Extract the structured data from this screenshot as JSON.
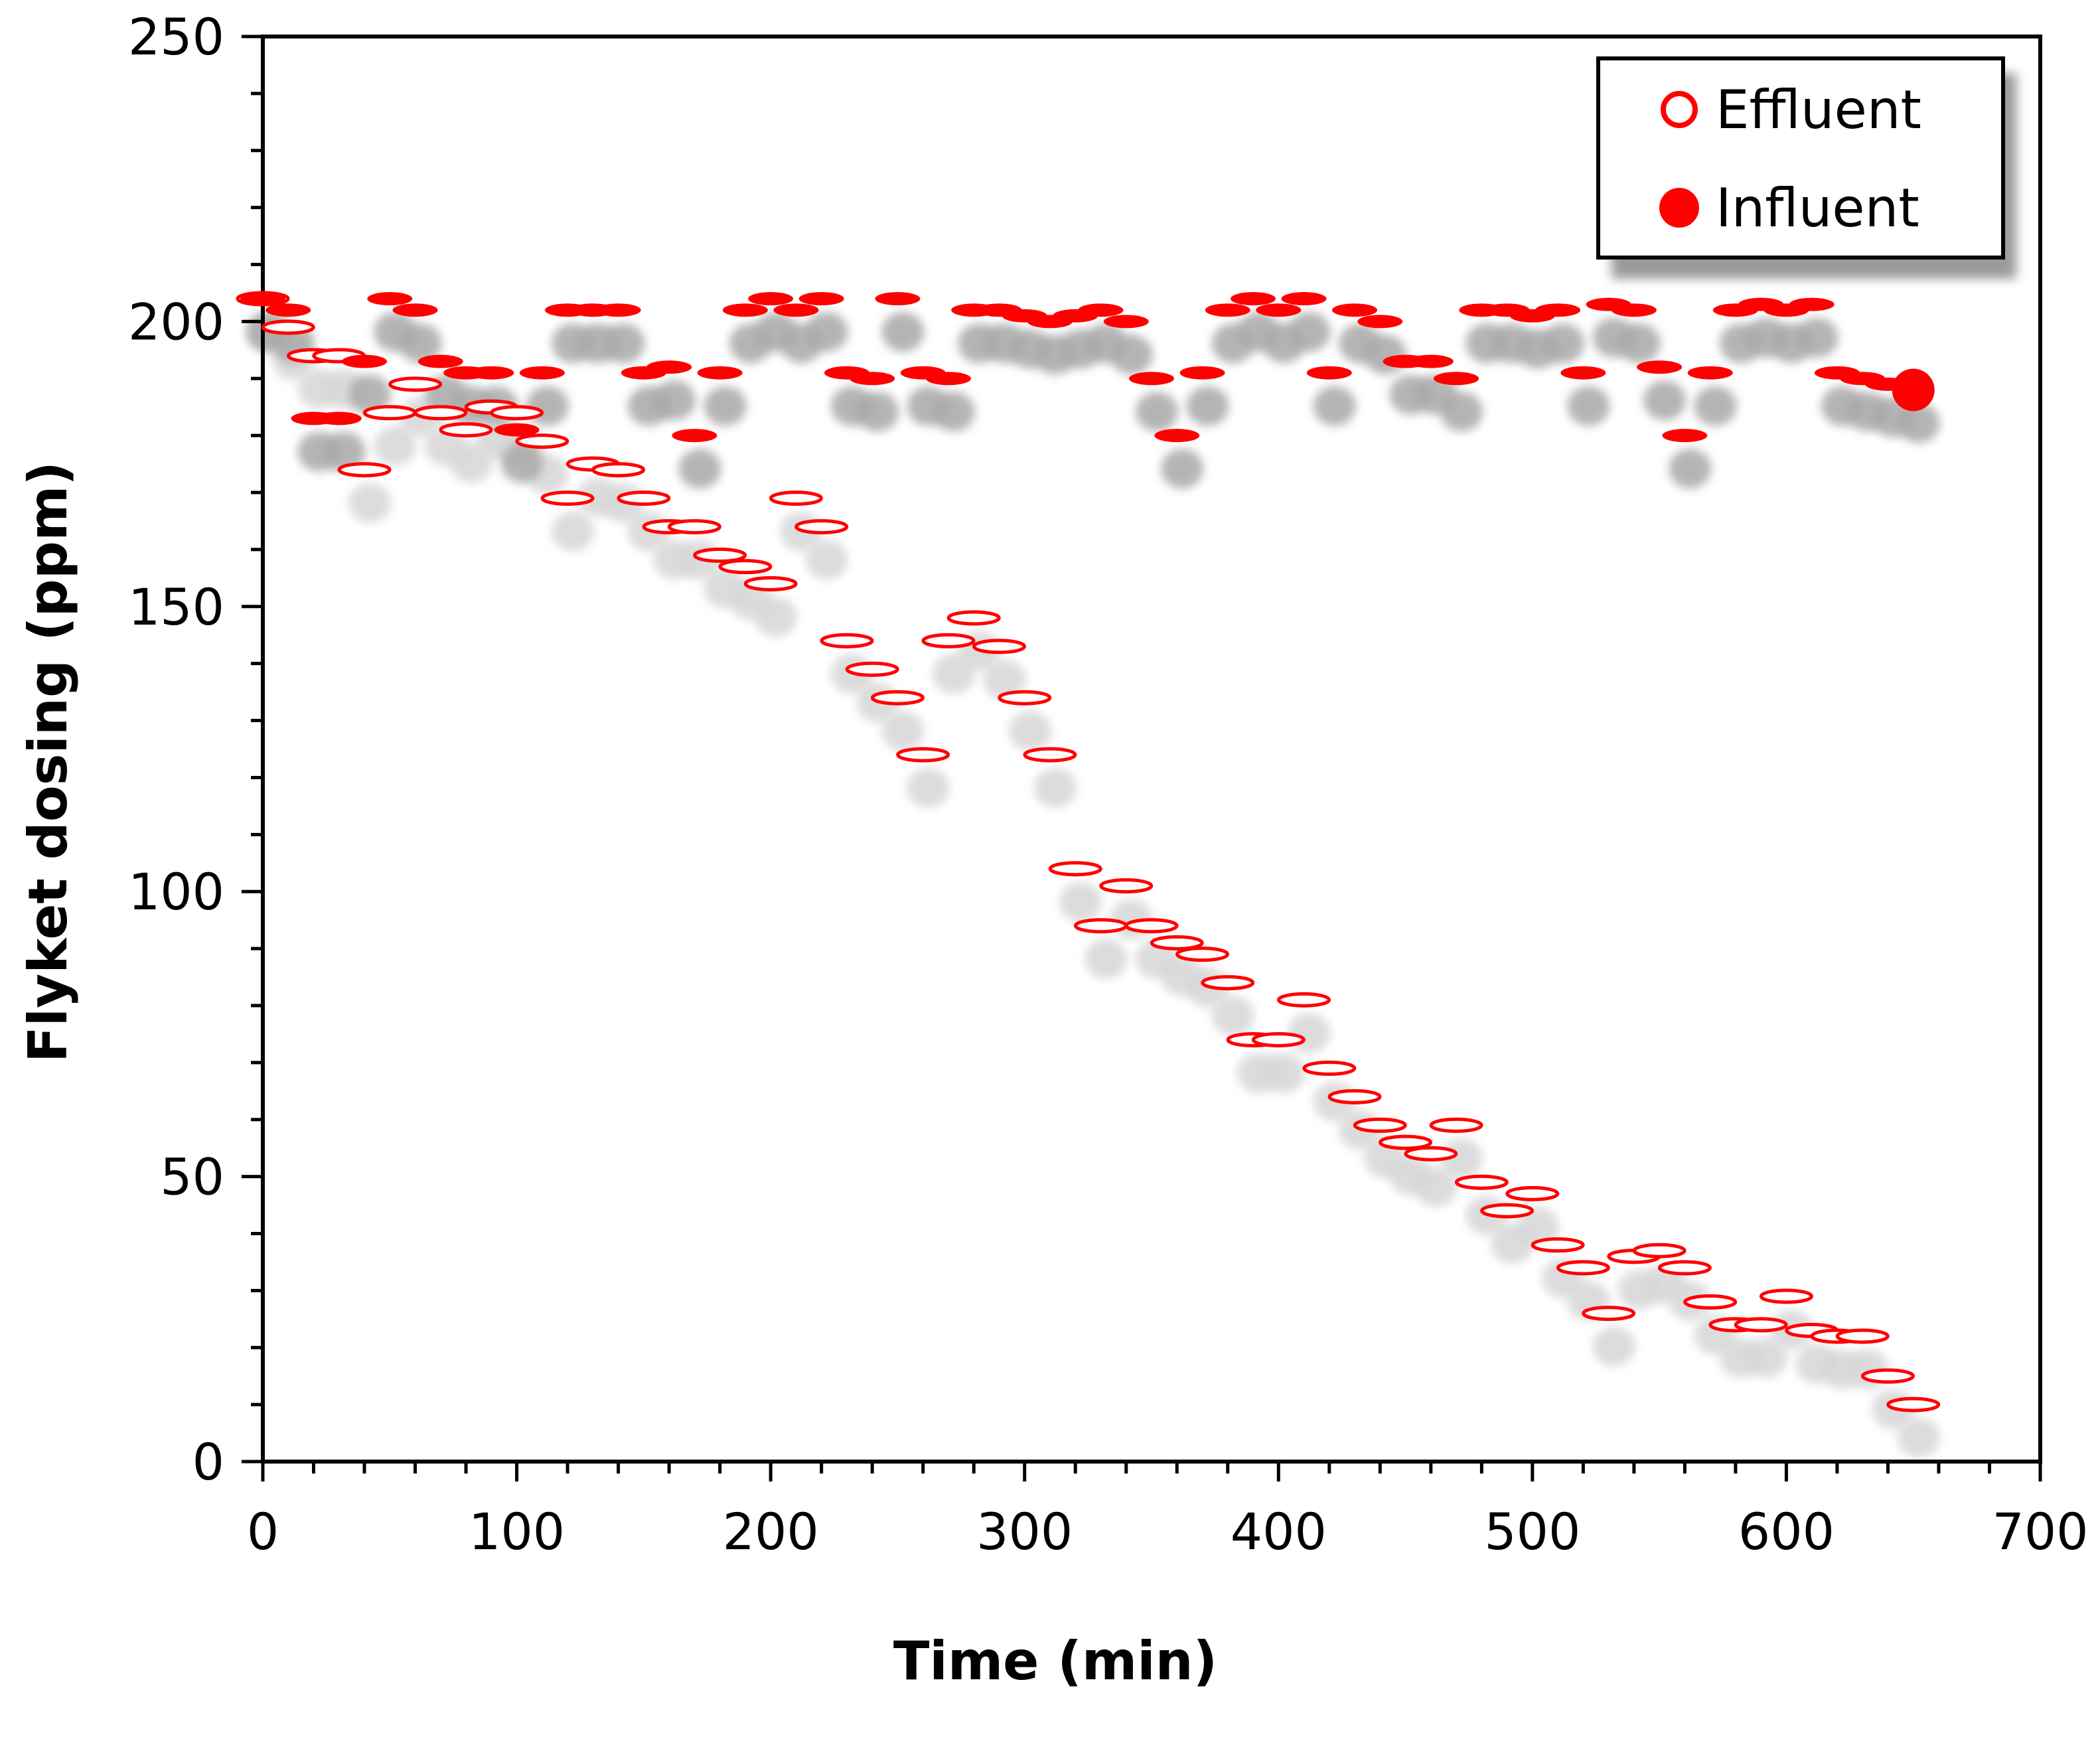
{
  "chart_data": {
    "type": "scatter",
    "title": "",
    "xlabel": "Time (min)",
    "ylabel": "Flyket dosing (ppm)",
    "xlim": [
      0,
      700
    ],
    "ylim": [
      0,
      250
    ],
    "x_ticks": [
      0,
      100,
      200,
      300,
      400,
      500,
      600,
      700
    ],
    "y_ticks": [
      0,
      50,
      100,
      150,
      200,
      250
    ],
    "legend_position": "top-right",
    "colors": {
      "marker": "#ff0000",
      "shadow": "#bdbdbd",
      "axis": "#000000"
    },
    "series": [
      {
        "name": "Effluent",
        "marker": "open-circle",
        "points": [
          [
            0,
            204
          ],
          [
            10,
            199
          ],
          [
            20,
            194
          ],
          [
            30,
            194
          ],
          [
            40,
            174
          ],
          [
            50,
            184
          ],
          [
            60,
            189
          ],
          [
            70,
            184
          ],
          [
            80,
            181
          ],
          [
            90,
            185
          ],
          [
            100,
            184
          ],
          [
            110,
            179
          ],
          [
            120,
            169
          ],
          [
            130,
            175
          ],
          [
            140,
            174
          ],
          [
            150,
            169
          ],
          [
            160,
            164
          ],
          [
            170,
            164
          ],
          [
            180,
            159
          ],
          [
            190,
            157
          ],
          [
            200,
            154
          ],
          [
            210,
            169
          ],
          [
            220,
            164
          ],
          [
            230,
            144
          ],
          [
            240,
            139
          ],
          [
            250,
            134
          ],
          [
            260,
            124
          ],
          [
            270,
            144
          ],
          [
            280,
            148
          ],
          [
            290,
            143
          ],
          [
            300,
            134
          ],
          [
            310,
            124
          ],
          [
            320,
            104
          ],
          [
            330,
            94
          ],
          [
            340,
            101
          ],
          [
            350,
            94
          ],
          [
            360,
            91
          ],
          [
            370,
            89
          ],
          [
            380,
            84
          ],
          [
            390,
            74
          ],
          [
            400,
            74
          ],
          [
            410,
            81
          ],
          [
            420,
            69
          ],
          [
            430,
            64
          ],
          [
            440,
            59
          ],
          [
            450,
            56
          ],
          [
            460,
            54
          ],
          [
            470,
            59
          ],
          [
            480,
            49
          ],
          [
            490,
            44
          ],
          [
            500,
            47
          ],
          [
            510,
            38
          ],
          [
            520,
            34
          ],
          [
            530,
            26
          ],
          [
            540,
            36
          ],
          [
            550,
            37
          ],
          [
            560,
            34
          ],
          [
            570,
            28
          ],
          [
            580,
            24
          ],
          [
            590,
            24
          ],
          [
            600,
            29
          ],
          [
            610,
            23
          ],
          [
            620,
            22
          ],
          [
            630,
            22
          ],
          [
            640,
            15
          ],
          [
            650,
            10
          ]
        ]
      },
      {
        "name": "Influent",
        "marker": "filled-circle",
        "points": [
          [
            0,
            204
          ],
          [
            10,
            202
          ],
          [
            20,
            183
          ],
          [
            30,
            183
          ],
          [
            40,
            193
          ],
          [
            50,
            204
          ],
          [
            60,
            202
          ],
          [
            70,
            193
          ],
          [
            80,
            191
          ],
          [
            90,
            191
          ],
          [
            100,
            181
          ],
          [
            110,
            191
          ],
          [
            120,
            202
          ],
          [
            130,
            202
          ],
          [
            140,
            202
          ],
          [
            150,
            191
          ],
          [
            160,
            192
          ],
          [
            170,
            180
          ],
          [
            180,
            191
          ],
          [
            190,
            202
          ],
          [
            200,
            204
          ],
          [
            210,
            202
          ],
          [
            220,
            204
          ],
          [
            230,
            191
          ],
          [
            240,
            190
          ],
          [
            250,
            204
          ],
          [
            260,
            191
          ],
          [
            270,
            190
          ],
          [
            280,
            202
          ],
          [
            290,
            202
          ],
          [
            300,
            201
          ],
          [
            310,
            200
          ],
          [
            320,
            201
          ],
          [
            330,
            202
          ],
          [
            340,
            200
          ],
          [
            350,
            190
          ],
          [
            360,
            180
          ],
          [
            370,
            191
          ],
          [
            380,
            202
          ],
          [
            390,
            204
          ],
          [
            400,
            202
          ],
          [
            410,
            204
          ],
          [
            420,
            191
          ],
          [
            430,
            202
          ],
          [
            440,
            200
          ],
          [
            450,
            193
          ],
          [
            460,
            193
          ],
          [
            470,
            190
          ],
          [
            480,
            202
          ],
          [
            490,
            202
          ],
          [
            500,
            201
          ],
          [
            510,
            202
          ],
          [
            520,
            191
          ],
          [
            530,
            203
          ],
          [
            540,
            202
          ],
          [
            550,
            192
          ],
          [
            560,
            180
          ],
          [
            570,
            191
          ],
          [
            580,
            202
          ],
          [
            590,
            203
          ],
          [
            600,
            202
          ],
          [
            610,
            203
          ],
          [
            620,
            191
          ],
          [
            630,
            190
          ],
          [
            640,
            189
          ],
          [
            650,
            188
          ]
        ]
      }
    ]
  }
}
